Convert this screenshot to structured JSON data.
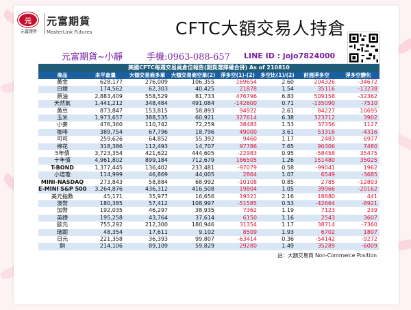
{
  "header": {
    "logo_text": "元",
    "logo_sub": "元富證券",
    "brand_cn": "元富期貨",
    "brand_en": "MasterLink Futures",
    "title": "CFTC大額交易人持倉"
  },
  "contact": {
    "name": "元富期貨~小靜",
    "phone": "手機:0963-088-657",
    "line": "LINE ID : jojo7824000"
  },
  "table": {
    "title": "美國CFTC每週交易員倉位報告(期貨選擇權合併) As of  210810",
    "headers": [
      "商品",
      "未平倉量",
      "大額交易商多單",
      "大額交易商空單(2)",
      "淨多空(1)-(2)",
      "多空比(1)/(2)",
      "前週淨多空",
      "淨多空變化"
    ],
    "rows": [
      [
        "黃金",
        "628,177",
        "276,009",
        "106,355",
        "169654",
        "2.60",
        "204326",
        "-34672"
      ],
      [
        "白銀",
        "174,562",
        "62,303",
        "40,425",
        "21878",
        "1.54",
        "35116",
        "-13238"
      ],
      [
        "原油",
        "2,883,409",
        "558,529",
        "81,733",
        "476796",
        "6.83",
        "509158",
        "-32362"
      ],
      [
        "天然氣",
        "1,441,212",
        "348,484",
        "491,084",
        "-142600",
        "0.71",
        "-135090",
        "-7510"
      ],
      [
        "黃豆",
        "873,847",
        "153,815",
        "58,893",
        "94922",
        "2.61",
        "84227",
        "10695"
      ],
      [
        "玉米",
        "1,973,657",
        "388,535",
        "60,921",
        "327614",
        "6.38",
        "323712",
        "3902"
      ],
      [
        "小麥",
        "476,360",
        "110,742",
        "72,259",
        "38483",
        "1.53",
        "37356",
        "1127"
      ],
      [
        "咖啡",
        "389,754",
        "67,796",
        "18,796",
        "49000",
        "3.61",
        "53316",
        "-4316"
      ],
      [
        "可可",
        "259,626",
        "64,852",
        "55,392",
        "9460",
        "1.17",
        "2483",
        "6977"
      ],
      [
        "棉花",
        "318,386",
        "112,493",
        "14,707",
        "97786",
        "7.65",
        "90306",
        "7480"
      ],
      [
        "5年債",
        "3,723,354",
        "421,622",
        "444,605",
        "-22983",
        "0.95",
        "-58458",
        "35475"
      ],
      [
        "十年債",
        "4,961,802",
        "899,184",
        "712,679",
        "186505",
        "1.26",
        "151480",
        "35025"
      ],
      [
        "T-BOND",
        "1,377,445",
        "136,402",
        "233,481",
        "-97079",
        "0.58",
        "-99041",
        "1962"
      ],
      [
        "小道瓊",
        "114,999",
        "46,869",
        "44,005",
        "2864",
        "1.07",
        "6549",
        "-3685"
      ],
      [
        "MINI-NASDAQ",
        "273,843",
        "58,884",
        "68,992",
        "-10108",
        "0.85",
        "2785",
        "-12893"
      ],
      [
        "E-MINI S&P 500",
        "3,264,876",
        "436,312",
        "416,508",
        "19804",
        "1.05",
        "39966",
        "-20162"
      ],
      [
        "美元指數",
        "45,171",
        "35,977",
        "16,656",
        "19321",
        "2.16",
        "18880",
        "441"
      ],
      [
        "澳幣",
        "180,385",
        "57,412",
        "108,997",
        "-51585",
        "0.53",
        "-42664",
        "-8921"
      ],
      [
        "加幣",
        "192,035",
        "46,297",
        "38,935",
        "7362",
        "1.19",
        "7123",
        "239"
      ],
      [
        "英鎊",
        "195,258",
        "43,764",
        "37,614",
        "6150",
        "1.16",
        "2543",
        "3607"
      ],
      [
        "歐元",
        "755,292",
        "212,300",
        "180,946",
        "31354",
        "1.17",
        "38714",
        "-7360"
      ],
      [
        "瑞朗",
        "48,354",
        "17,611",
        "9,102",
        "8509",
        "1.93",
        "6702",
        "1807"
      ],
      [
        "日元",
        "221,358",
        "36,393",
        "99,807",
        "-63414",
        "0.36",
        "-54142",
        "-9272"
      ],
      [
        "銅",
        "214,106",
        "89,109",
        "59,829",
        "29280",
        "1.49",
        "35289",
        "-6009"
      ]
    ],
    "note": "註：大額交易商 Non-Commerce Position"
  },
  "colors": {
    "header_bg": "#1a5fa0",
    "title_bg": "#1f5c7a",
    "stripe": "#d9e6f5",
    "negative_positive_red": "#e0102a",
    "contact": "#7a1fa2"
  }
}
